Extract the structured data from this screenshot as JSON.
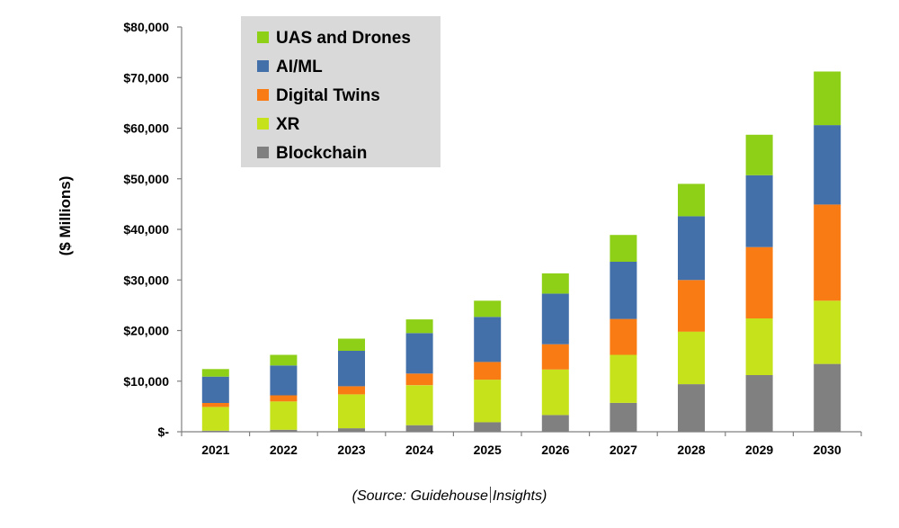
{
  "chart_data": {
    "type": "bar",
    "stacked": true,
    "ylabel": "($ Millions)",
    "ylim": [
      0,
      80000
    ],
    "yticks": [
      0,
      10000,
      20000,
      30000,
      40000,
      50000,
      60000,
      70000,
      80000
    ],
    "ytick_labels": [
      "$-",
      "$10,000",
      "$20,000",
      "$30,000",
      "$40,000",
      "$50,000",
      "$60,000",
      "$70,000",
      "$80,000"
    ],
    "categories": [
      "2021",
      "2022",
      "2023",
      "2024",
      "2025",
      "2026",
      "2027",
      "2028",
      "2029",
      "2030"
    ],
    "grid": false,
    "legend": {
      "placement": "top-left",
      "background": "#d9d9d9"
    },
    "series": [
      {
        "name": "Blockchain",
        "color": "#808080",
        "values": [
          200,
          400,
          700,
          1300,
          1900,
          3300,
          5700,
          9400,
          11200,
          13400
        ]
      },
      {
        "name": "XR",
        "color": "#c6e21a",
        "values": [
          4700,
          5600,
          6700,
          7900,
          8400,
          9000,
          9500,
          10400,
          11200,
          12500
        ]
      },
      {
        "name": "Digital Twins",
        "color": "#f97b14",
        "values": [
          800,
          1200,
          1600,
          2300,
          3500,
          5000,
          7100,
          10200,
          14100,
          19000
        ]
      },
      {
        "name": "AI/ML",
        "color": "#4470aa",
        "values": [
          5200,
          5900,
          7000,
          8000,
          8900,
          10000,
          11300,
          12600,
          14200,
          15700
        ]
      },
      {
        "name": "UAS and Drones",
        "color": "#8ecf17",
        "values": [
          1500,
          2100,
          2400,
          2700,
          3200,
          4000,
          5300,
          6400,
          8000,
          10600
        ]
      }
    ],
    "legend_order": [
      "UAS and Drones",
      "AI/ML",
      "Digital Twins",
      "XR",
      "Blockchain"
    ]
  },
  "source": {
    "prefix": "(Source: Guidehouse",
    "suffix": "Insights)"
  }
}
